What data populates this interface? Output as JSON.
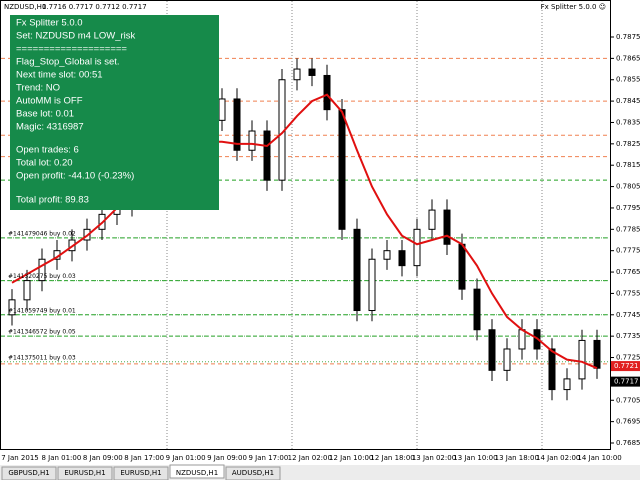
{
  "header": {
    "symbol": "NZDUSD,H1",
    "quote": "0.7716 0.7717 0.7712 0.7717",
    "expert": "Fx Splitter 5.0.0 ☺"
  },
  "panel": {
    "block1": [
      "Fx Splitter 5.0.0",
      "Set: NZDUSD m4 LOW_risk",
      "====================",
      "Flag_Stop_Global is set.",
      "Next time slot: 00:51",
      "Trend: NO",
      "AutoMM is OFF",
      "Base lot: 0.01",
      "Magic: 4316987"
    ],
    "block2": [
      "Open trades: 6",
      "Total lot: 0.20",
      "Open profit: -44.10 (-0.23%)"
    ],
    "block3": [
      "Total profit: 89.83"
    ]
  },
  "orders": [
    "#141479046 buy 0.02",
    "#141320275 buy 0.03",
    "#141059749 buy 0.01",
    "#141346572 buy 0.05",
    "#141375011 buy 0.03"
  ],
  "chart": {
    "ylim": [
      0.7685,
      0.7875
    ],
    "yticks": [
      0.7875,
      0.7865,
      0.7855,
      0.7845,
      0.7835,
      0.7825,
      0.7815,
      0.7805,
      0.7795,
      0.7785,
      0.7775,
      0.7765,
      0.7755,
      0.7745,
      0.7735,
      0.7725,
      0.7705,
      0.7695,
      0.7685
    ],
    "ask": 0.7721,
    "bid": 0.7717,
    "xlabels": [
      "7 Jan 2015",
      "8 Jan 01:00",
      "8 Jan 09:00",
      "8 Jan 17:00",
      "9 Jan 01:00",
      "9 Jan 09:00",
      "9 Jan 17:00",
      "12 Jan 02:00",
      "12 Jan 10:00",
      "12 Jan 18:00",
      "13 Jan 02:00",
      "13 Jan 10:00",
      "13 Jan 18:00",
      "14 Jan 02:00",
      "14 Jan 10:00"
    ],
    "open": [
      0.7745,
      0.7752,
      0.7761,
      0.7771,
      0.7775,
      0.778,
      0.7785,
      0.7792,
      0.7796,
      0.7803,
      0.7808,
      0.7813,
      0.7827,
      0.7841,
      0.7836,
      0.7846,
      0.7822,
      0.7831,
      0.7808,
      0.7855,
      0.786,
      0.7857,
      0.7841,
      0.7785,
      0.7747,
      0.7771,
      0.7775,
      0.7768,
      0.7785,
      0.7794,
      0.7778,
      0.7757,
      0.7738,
      0.7719,
      0.7729,
      0.7738,
      0.7729,
      0.771,
      0.7715,
      0.7733
    ],
    "high": [
      0.7757,
      0.7766,
      0.7776,
      0.778,
      0.7785,
      0.779,
      0.7797,
      0.7801,
      0.7808,
      0.7813,
      0.7818,
      0.7832,
      0.7846,
      0.7846,
      0.7851,
      0.7851,
      0.7836,
      0.7836,
      0.786,
      0.7865,
      0.7865,
      0.7862,
      0.7846,
      0.779,
      0.7776,
      0.778,
      0.778,
      0.779,
      0.7799,
      0.7799,
      0.7783,
      0.7762,
      0.7743,
      0.7734,
      0.7743,
      0.7743,
      0.7734,
      0.772,
      0.7738,
      0.7738
    ],
    "low": [
      0.774,
      0.7747,
      0.7756,
      0.7766,
      0.777,
      0.7775,
      0.778,
      0.7787,
      0.7791,
      0.7798,
      0.7803,
      0.7808,
      0.7822,
      0.7831,
      0.7831,
      0.7817,
      0.7817,
      0.7803,
      0.7803,
      0.785,
      0.7852,
      0.7836,
      0.778,
      0.7742,
      0.7742,
      0.7766,
      0.7763,
      0.7763,
      0.778,
      0.7773,
      0.7752,
      0.7733,
      0.7714,
      0.7714,
      0.7724,
      0.7724,
      0.7705,
      0.7705,
      0.771,
      0.7715
    ],
    "close": [
      0.7752,
      0.7761,
      0.7771,
      0.7775,
      0.778,
      0.7785,
      0.7792,
      0.7796,
      0.7803,
      0.7808,
      0.7813,
      0.7827,
      0.7841,
      0.7836,
      0.7846,
      0.7822,
      0.7831,
      0.7808,
      0.7855,
      0.786,
      0.7857,
      0.7841,
      0.7785,
      0.7747,
      0.7771,
      0.7775,
      0.7768,
      0.7785,
      0.7794,
      0.7778,
      0.7757,
      0.7738,
      0.7719,
      0.7729,
      0.7738,
      0.7729,
      0.771,
      0.7715,
      0.7733,
      0.772
    ],
    "ma": [
      0.776,
      0.7764,
      0.7768,
      0.7772,
      0.7777,
      0.7782,
      0.7788,
      0.7795,
      0.7802,
      0.7808,
      0.7814,
      0.782,
      0.7824,
      0.7826,
      0.7826,
      0.7825,
      0.7825,
      0.7824,
      0.783,
      0.7838,
      0.7845,
      0.7848,
      0.784,
      0.7822,
      0.7805,
      0.7792,
      0.7782,
      0.7778,
      0.778,
      0.7782,
      0.7778,
      0.7768,
      0.7755,
      0.7744,
      0.7738,
      0.7734,
      0.7728,
      0.7724,
      0.7723,
      0.772
    ],
    "sell_levels": [
      0.7865,
      0.7845,
      0.7829,
      0.7819,
      0.7722
    ],
    "buy_levels": [
      0.7808,
      0.7781,
      0.7761,
      0.7745,
      0.7735
    ],
    "order_levels": [
      0.7781,
      0.7761,
      0.7745,
      0.7735,
      0.7723
    ]
  },
  "tabs": [
    "GBPUSD,H1",
    "EURUSD,H1",
    "EURUSD,H1",
    "NZDUSD,H1",
    "AUDUSD,H1"
  ]
}
